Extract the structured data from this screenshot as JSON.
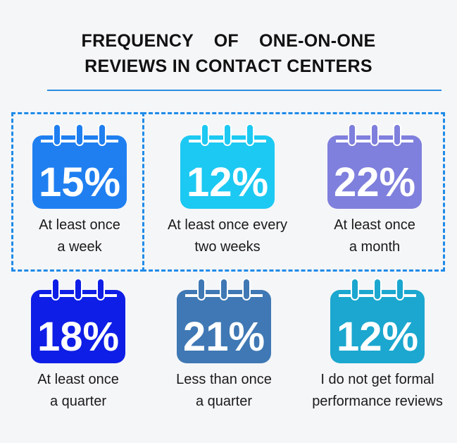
{
  "title": {
    "line1": "FREQUENCY    OF    ONE-ON-ONE",
    "line2": "REVIEWS IN CONTACT CENTERS"
  },
  "colors": {
    "rule": "#2a8ce0",
    "dash": "#1f8be8"
  },
  "items": [
    {
      "percent": "15%",
      "line1": "At least once",
      "line2": "a week",
      "color": "#1f7ff0",
      "icon": "calendar-icon"
    },
    {
      "percent": "12%",
      "line1": "At least once every",
      "line2": "two weeks",
      "color": "#1cc9f2",
      "icon": "calendar-icon"
    },
    {
      "percent": "22%",
      "line1": "At least once",
      "line2": "a month",
      "color": "#7f7fdd",
      "icon": "calendar-icon"
    },
    {
      "percent": "18%",
      "line1": "At least once",
      "line2": "a quarter",
      "color": "#0e1ee6",
      "icon": "calendar-icon"
    },
    {
      "percent": "21%",
      "line1": "Less than once",
      "line2": "a quarter",
      "color": "#3f78b4",
      "icon": "calendar-icon"
    },
    {
      "percent": "12%",
      "line1": "I do not get formal",
      "line2": "performance reviews",
      "color": "#1ba7cf",
      "icon": "calendar-icon"
    }
  ]
}
